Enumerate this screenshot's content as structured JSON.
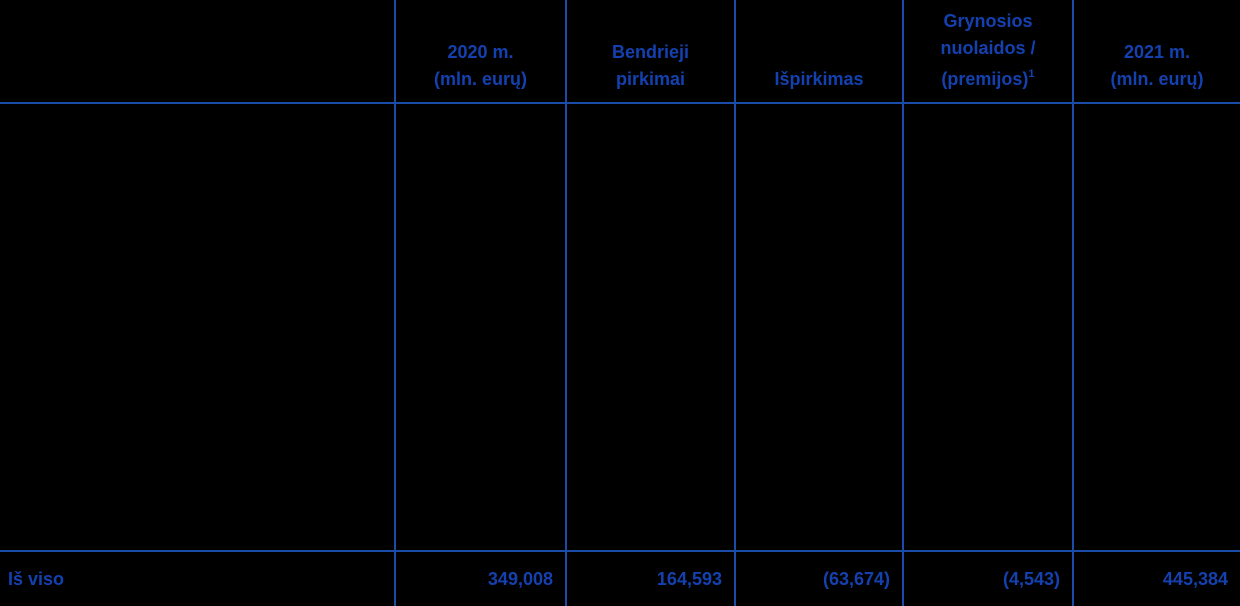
{
  "colors": {
    "background": "#000000",
    "line": "#1A4CA8",
    "text": "#1441AF"
  },
  "table": {
    "headers": [
      {
        "lines": []
      },
      {
        "lines": [
          "2020 m.",
          "(mln. eurų)"
        ]
      },
      {
        "lines": [
          "Bendrieji",
          "pirkimai"
        ]
      },
      {
        "lines": [
          "Išpirkimas"
        ]
      },
      {
        "lines": [
          "Grynosios",
          "nuolaidos /",
          "(premijos)"
        ],
        "footnote_superscript": "1"
      },
      {
        "lines": [
          "2021 m.",
          "(mln. eurų)"
        ]
      }
    ],
    "total_row": {
      "label": "Iš viso",
      "values": [
        "349,008",
        "164,593",
        "(63,674)",
        "(4,543)",
        "445,384"
      ]
    }
  }
}
